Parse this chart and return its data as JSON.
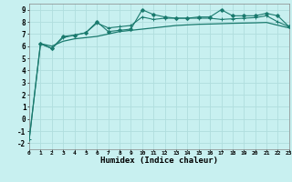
{
  "xlabel": "Humidex (Indice chaleur)",
  "ylabel": "",
  "background_color": "#c8f0f0",
  "grid_color": "#b0dede",
  "line_color": "#1a7a6e",
  "xlim": [
    0,
    23
  ],
  "ylim": [
    -2.5,
    9.5
  ],
  "xticks": [
    0,
    1,
    2,
    3,
    4,
    5,
    6,
    7,
    8,
    9,
    10,
    11,
    12,
    13,
    14,
    15,
    16,
    17,
    18,
    19,
    20,
    21,
    22,
    23
  ],
  "yticks": [
    -2,
    -1,
    0,
    1,
    2,
    3,
    4,
    5,
    6,
    7,
    8,
    9
  ],
  "line1_x": [
    0,
    1,
    2,
    3,
    4,
    5,
    6,
    7,
    8,
    9,
    10,
    11,
    12,
    13,
    14,
    15,
    16,
    17,
    18,
    19,
    20,
    21,
    22,
    23
  ],
  "line1_y": [
    -1.7,
    6.2,
    6.0,
    6.4,
    6.6,
    6.7,
    6.8,
    7.0,
    7.2,
    7.3,
    7.4,
    7.5,
    7.6,
    7.7,
    7.75,
    7.8,
    7.82,
    7.85,
    7.88,
    7.9,
    7.92,
    7.95,
    7.72,
    7.5
  ],
  "line2_x": [
    0,
    1,
    2,
    3,
    4,
    5,
    6,
    7,
    8,
    9,
    10,
    11,
    12,
    13,
    14,
    15,
    16,
    17,
    18,
    19,
    20,
    21,
    22,
    23
  ],
  "line2_y": [
    -1.7,
    6.2,
    5.8,
    6.7,
    6.9,
    7.1,
    7.9,
    7.5,
    7.6,
    7.7,
    8.4,
    8.2,
    8.3,
    8.3,
    8.3,
    8.3,
    8.3,
    8.2,
    8.25,
    8.3,
    8.35,
    8.5,
    8.0,
    7.6
  ],
  "line3_x": [
    1,
    2,
    3,
    4,
    5,
    6,
    7,
    8,
    9,
    10,
    11,
    12,
    13,
    14,
    15,
    16,
    17,
    18,
    19,
    20,
    21,
    22,
    23
  ],
  "line3_y": [
    6.2,
    5.8,
    6.8,
    6.9,
    7.1,
    8.0,
    7.2,
    7.3,
    7.4,
    9.0,
    8.6,
    8.4,
    8.3,
    8.3,
    8.4,
    8.4,
    9.0,
    8.5,
    8.5,
    8.5,
    8.7,
    8.5,
    7.6
  ]
}
